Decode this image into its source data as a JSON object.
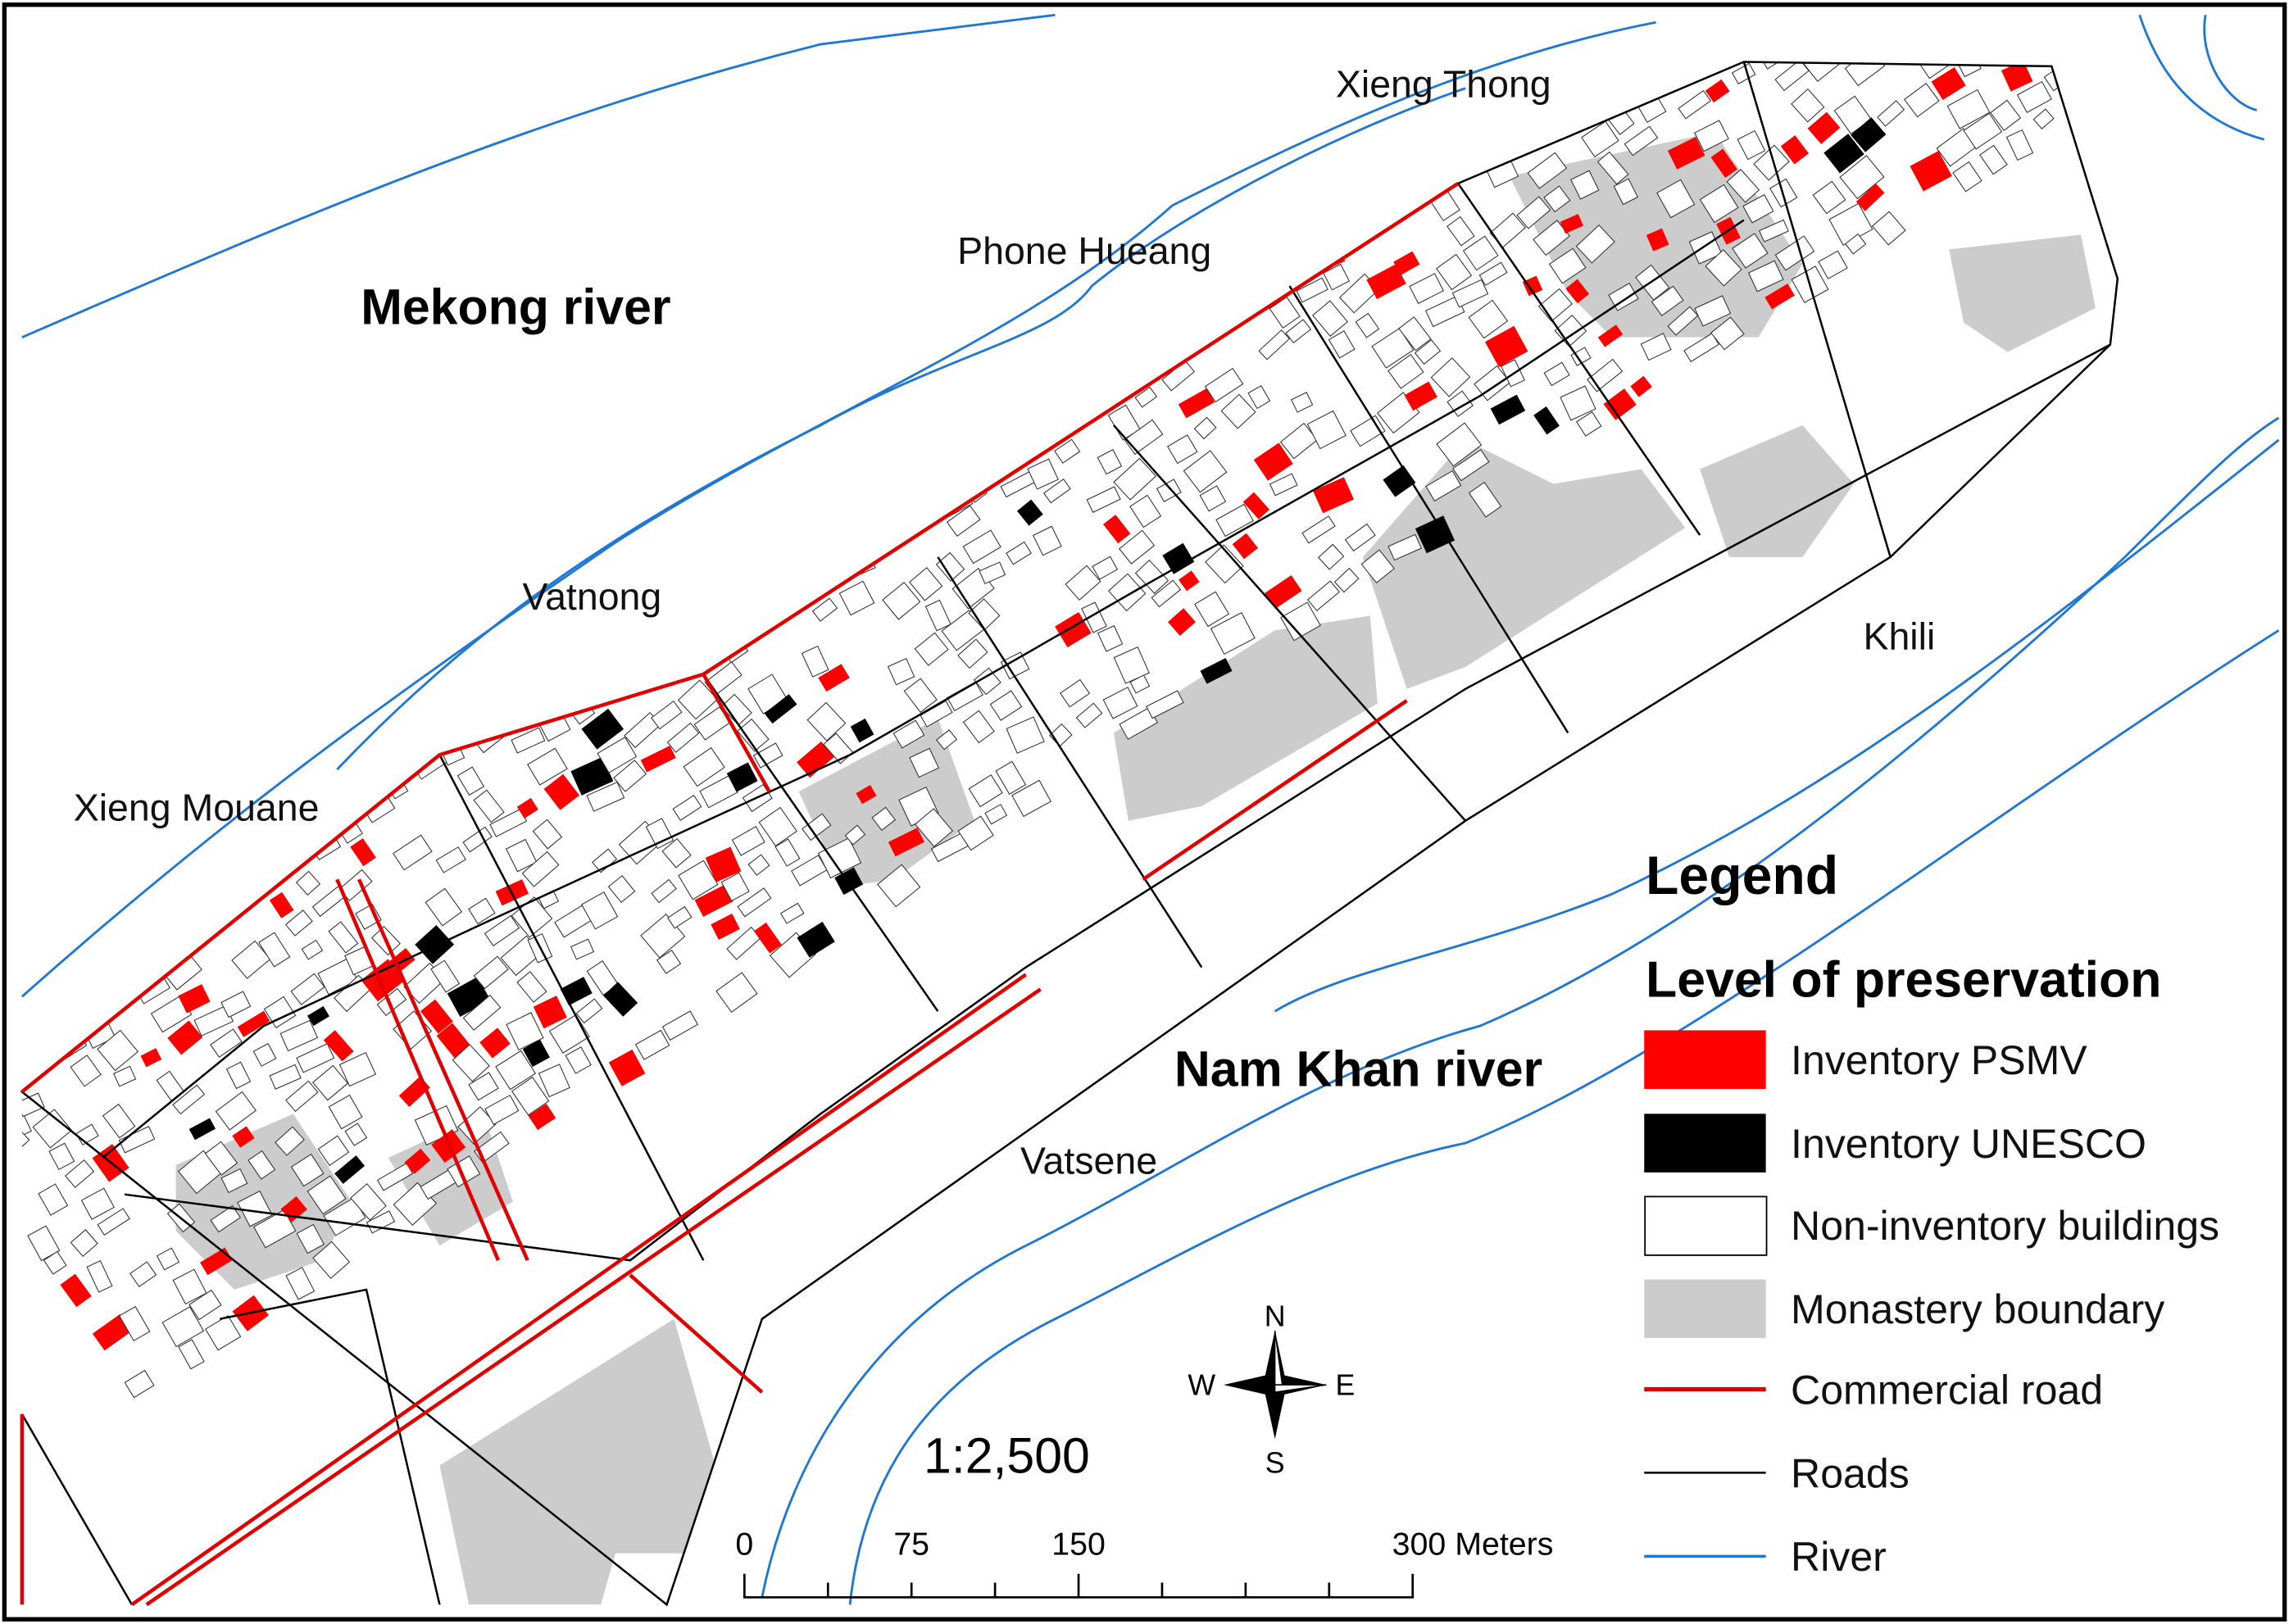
{
  "places": [
    "Xieng Thong",
    "Phone Hueang",
    "Mekong river",
    "Vatnong",
    "Xieng Mouane",
    "Nam Khan river",
    "Vatsene",
    "Khili"
  ],
  "legend": {
    "title": "Legend",
    "subtitle": "Level of preservation",
    "items": [
      "Inventory PSMV",
      "Inventory UNESCO",
      "Non-inventory buildings",
      "Monastery boundary",
      "Commercial road",
      "Roads",
      "River"
    ]
  },
  "scale": {
    "ratio": "1:2,500",
    "labels": [
      "0",
      "75",
      "150",
      "300 Meters"
    ]
  },
  "compass": {
    "north": "N",
    "south": "S",
    "east": "E",
    "west": "W"
  }
}
